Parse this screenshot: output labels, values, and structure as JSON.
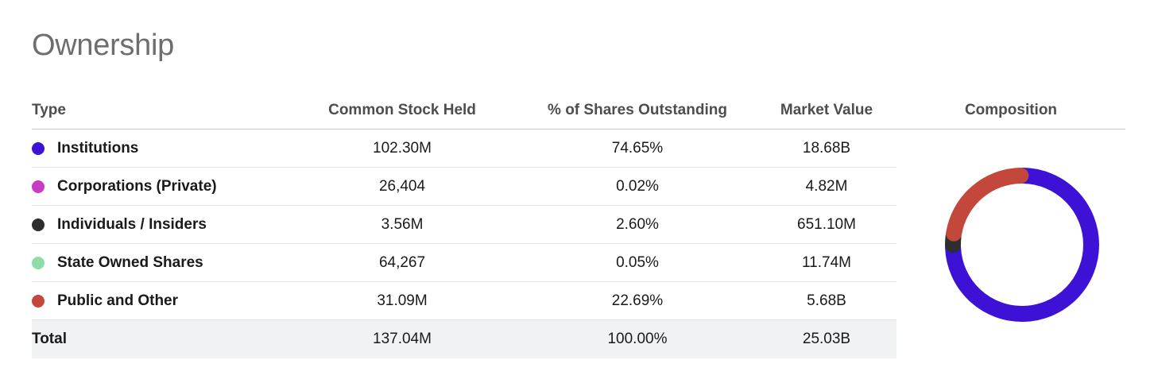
{
  "title": "Ownership",
  "headers": {
    "type": "Type",
    "stock": "Common Stock Held",
    "pct": "% of Shares Outstanding",
    "mv": "Market Value",
    "composition": "Composition"
  },
  "rows": [
    {
      "type": "Institutions",
      "color": "#3e12d6",
      "stock": "102.30M",
      "pct": "74.65%",
      "mv": "18.68B",
      "share": 74.65
    },
    {
      "type": "Corporations (Private)",
      "color": "#c83ac4",
      "stock": "26,404",
      "pct": "0.02%",
      "mv": "4.82M",
      "share": 0.02
    },
    {
      "type": "Individuals / Insiders",
      "color": "#2e2e2e",
      "stock": "3.56M",
      "pct": "2.60%",
      "mv": "651.10M",
      "share": 2.6
    },
    {
      "type": "State Owned Shares",
      "color": "#8fdcaa",
      "stock": "64,267",
      "pct": "0.05%",
      "mv": "11.74M",
      "share": 0.05
    },
    {
      "type": "Public and Other",
      "color": "#c3473a",
      "stock": "31.09M",
      "pct": "22.69%",
      "mv": "5.68B",
      "share": 22.69
    }
  ],
  "total": {
    "type": "Total",
    "stock": "137.04M",
    "pct": "100.00%",
    "mv": "25.03B"
  }
}
